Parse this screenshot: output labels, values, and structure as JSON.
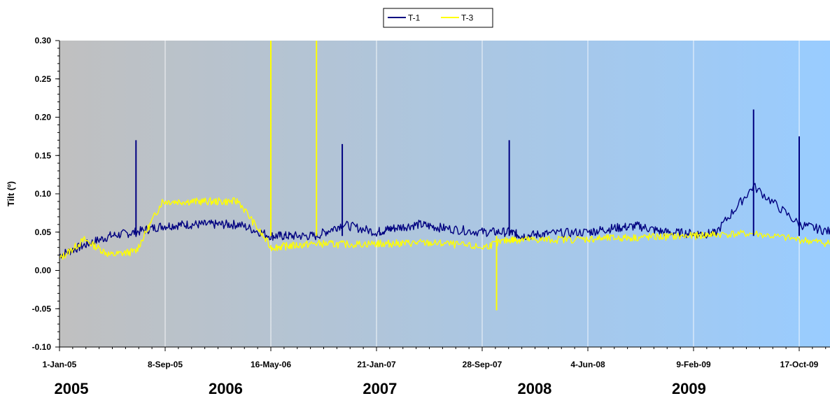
{
  "chart_data": {
    "type": "line",
    "ylabel": "Tilt (º)",
    "ylim": [
      -0.1,
      0.3
    ],
    "y_ticks": [
      "0.30",
      "0.25",
      "0.20",
      "0.15",
      "0.10",
      "0.05",
      "0.00",
      "-0.05",
      "-0.10"
    ],
    "x_tick_labels": [
      "1-Jan-05",
      "8-Sep-05",
      "16-May-06",
      "21-Jan-07",
      "28-Sep-07",
      "4-Jun-08",
      "9-Feb-09",
      "17-Oct-09"
    ],
    "year_labels": [
      "2005",
      "2006",
      "2007",
      "2008",
      "2009"
    ],
    "grid": true,
    "legend_position": "top-center",
    "colors": {
      "T-1": "#000080",
      "T-3": "#ffff00",
      "bg_left": "#c0c0c0",
      "bg_right": "#99ccff"
    },
    "series": [
      {
        "name": "T-1",
        "x": [
          "1-Jan-05",
          "1-Mar-05",
          "1-May-05",
          "1-Jul-05",
          "1-Sep-05",
          "1-Nov-05",
          "1-Jan-06",
          "1-Mar-06",
          "16-May-06",
          "1-Jul-06",
          "1-Sep-06",
          "1-Nov-06",
          "21-Jan-07",
          "1-Mar-07",
          "1-May-07",
          "1-Jul-07",
          "28-Sep-07",
          "1-Dec-07",
          "1-Jan-08",
          "1-Mar-08",
          "4-Jun-08",
          "1-Aug-08",
          "1-Oct-08",
          "1-Dec-08",
          "9-Feb-09",
          "1-Apr-09",
          "1-Jul-09",
          "17-Oct-09",
          "1-Jan-10"
        ],
        "y": [
          0.02,
          0.033,
          0.045,
          0.05,
          0.058,
          0.06,
          0.06,
          0.06,
          0.045,
          0.045,
          0.045,
          0.06,
          0.05,
          0.055,
          0.06,
          0.055,
          0.05,
          0.05,
          0.045,
          0.048,
          0.05,
          0.055,
          0.058,
          0.05,
          0.048,
          0.048,
          0.11,
          0.06,
          0.05
        ]
      },
      {
        "name": "T-3",
        "x": [
          "1-Jan-05",
          "1-Mar-05",
          "1-May-05",
          "1-Jul-05",
          "1-Sep-05",
          "1-Nov-05",
          "1-Jan-06",
          "1-Mar-06",
          "16-May-06",
          "1-Jul-06",
          "1-Sep-06",
          "1-Nov-06",
          "21-Jan-07",
          "1-Mar-07",
          "1-May-07",
          "1-Jul-07",
          "28-Sep-07",
          "1-Dec-07",
          "1-Jan-08",
          "1-Mar-08",
          "4-Jun-08",
          "1-Aug-08",
          "1-Oct-08",
          "1-Dec-08",
          "9-Feb-09",
          "1-Apr-09",
          "1-Jul-09",
          "17-Oct-09",
          "1-Jan-10"
        ],
        "y": [
          0.015,
          0.04,
          0.02,
          0.025,
          0.09,
          0.09,
          0.09,
          0.09,
          0.03,
          0.032,
          0.035,
          0.034,
          0.035,
          0.035,
          0.036,
          0.035,
          0.03,
          0.04,
          0.04,
          0.04,
          0.041,
          0.042,
          0.043,
          0.044,
          0.045,
          0.047,
          0.048,
          0.04,
          0.035
        ]
      }
    ],
    "annotations": [
      {
        "series": "T-1",
        "date": "1-Jul-05",
        "value": 0.17
      },
      {
        "series": "T-1",
        "date": "1-Nov-06",
        "value": 0.165
      },
      {
        "series": "T-1",
        "date": "1-Dec-07",
        "value": 0.17
      },
      {
        "series": "T-1",
        "date": "1-Jul-09",
        "value": 0.21
      },
      {
        "series": "T-1",
        "date": "17-Oct-09",
        "value": 0.175
      },
      {
        "series": "T-3",
        "date": "16-May-06",
        "value": 0.3
      },
      {
        "series": "T-3",
        "date": "1-Sep-06",
        "value": 0.3
      },
      {
        "series": "T-3",
        "date": "1-Nov-07",
        "value": -0.052
      }
    ]
  }
}
